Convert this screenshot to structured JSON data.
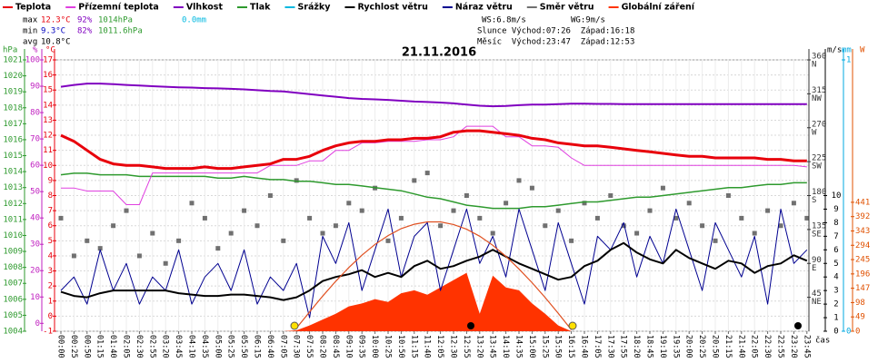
{
  "chart_data": {
    "type": "line",
    "title": "21.11.2016",
    "x_label": "čas",
    "categories": [
      "00:00",
      "00:25",
      "00:50",
      "01:15",
      "01:40",
      "02:05",
      "02:30",
      "02:55",
      "03:20",
      "03:45",
      "04:10",
      "04:35",
      "05:00",
      "05:25",
      "05:50",
      "06:15",
      "06:40",
      "07:05",
      "07:30",
      "07:55",
      "08:20",
      "08:45",
      "09:10",
      "09:35",
      "10:00",
      "10:25",
      "10:50",
      "11:15",
      "11:40",
      "12:05",
      "12:30",
      "12:55",
      "13:20",
      "13:45",
      "14:10",
      "14:35",
      "15:00",
      "15:25",
      "15:50",
      "16:15",
      "16:40",
      "17:05",
      "17:30",
      "17:55",
      "18:20",
      "18:45",
      "19:10",
      "19:35",
      "20:00",
      "20:25",
      "20:50",
      "21:15",
      "21:40",
      "22:05",
      "22:30",
      "22:55",
      "23:20",
      "23:45"
    ],
    "axes": {
      "hpa": {
        "label": "hPa",
        "color": "#2e9a2e",
        "ylim": [
          1004,
          1021
        ],
        "yticks": [
          1004,
          1005,
          1006,
          1007,
          1008,
          1009,
          1010,
          1011,
          1012,
          1013,
          1014,
          1015,
          1016,
          1017,
          1018,
          1019,
          1020,
          1021
        ]
      },
      "pct": {
        "label": "%",
        "color": "#c020c0",
        "ylim": [
          -3,
          100
        ],
        "yticks": [
          0,
          10,
          20,
          30,
          40,
          50,
          60,
          70,
          80,
          90,
          100
        ]
      },
      "temp": {
        "label": "°C",
        "color": "#e8000b",
        "ylim": [
          -1,
          17
        ],
        "yticks": [
          -1,
          0,
          1,
          2,
          3,
          4,
          5,
          6,
          7,
          8,
          9,
          10,
          11,
          12,
          13,
          14,
          15,
          16,
          17
        ]
      },
      "deg": {
        "color": "#333333",
        "ylim": [
          0,
          360
        ],
        "yticks": [
          45,
          90,
          135,
          180,
          225,
          270,
          315,
          360
        ],
        "direction_names": [
          "NE",
          "E",
          "SE",
          "S",
          "SW",
          "W",
          "NW",
          "N"
        ]
      },
      "ms": {
        "label": "m/s",
        "color": "#000000",
        "ylim": [
          0,
          20
        ],
        "yticks": [
          0,
          1,
          2,
          3,
          4,
          5,
          6,
          7,
          8,
          9,
          10
        ]
      },
      "mm": {
        "label": "mm",
        "color": "#00a8e0",
        "ylim": [
          0,
          1
        ],
        "yticks": [
          0,
          1
        ]
      },
      "w": {
        "label": "W",
        "color": "#e05000",
        "ylim": [
          0,
          928
        ],
        "yticks": [
          0,
          49,
          98,
          147,
          196,
          245,
          294,
          343,
          392,
          441
        ]
      }
    },
    "grid": true,
    "series": [
      {
        "name": "Teplota",
        "color": "#e8000b",
        "axis": "temp",
        "width": 3,
        "values": [
          12.0,
          11.6,
          11.0,
          10.4,
          10.1,
          10.0,
          10.0,
          9.9,
          9.8,
          9.8,
          9.8,
          9.9,
          9.8,
          9.8,
          9.9,
          10.0,
          10.1,
          10.4,
          10.4,
          10.6,
          11.0,
          11.3,
          11.5,
          11.6,
          11.6,
          11.7,
          11.7,
          11.8,
          11.8,
          11.9,
          12.2,
          12.3,
          12.3,
          12.2,
          12.1,
          12.0,
          11.8,
          11.7,
          11.5,
          11.4,
          11.3,
          11.3,
          11.2,
          11.1,
          11.0,
          10.9,
          10.8,
          10.7,
          10.6,
          10.6,
          10.5,
          10.5,
          10.5,
          10.5,
          10.4,
          10.4,
          10.3,
          10.3
        ]
      },
      {
        "name": "Přízemní teplota",
        "color": "#e040e0",
        "axis": "temp",
        "width": 1,
        "values": [
          8.5,
          8.5,
          8.3,
          8.3,
          8.3,
          7.4,
          7.4,
          9.5,
          9.5,
          9.5,
          9.5,
          9.5,
          9.5,
          9.5,
          9.5,
          9.5,
          10.0,
          10.0,
          10.0,
          10.3,
          10.3,
          11.0,
          11.0,
          11.5,
          11.5,
          11.6,
          11.6,
          11.6,
          11.7,
          11.7,
          11.9,
          12.6,
          12.6,
          12.6,
          11.9,
          11.9,
          11.3,
          11.3,
          11.2,
          10.5,
          10.0,
          10.0,
          10.0,
          10.0,
          10.0,
          10.0,
          10.0,
          10.0,
          10.0,
          10.0,
          10.0,
          10.0,
          10.0,
          10.0,
          10.0,
          10.0,
          10.0,
          9.9
        ]
      },
      {
        "name": "Vlhkost",
        "color": "#8000c0",
        "axis": "pct",
        "width": 2,
        "values": [
          89.8,
          90.5,
          91.0,
          91.0,
          90.8,
          90.5,
          90.3,
          90.0,
          89.8,
          89.6,
          89.5,
          89.3,
          89.2,
          89.0,
          88.8,
          88.5,
          88.2,
          88.0,
          87.5,
          87.0,
          86.5,
          86.0,
          85.5,
          85.2,
          85.0,
          84.8,
          84.5,
          84.2,
          84.0,
          83.8,
          83.5,
          83.0,
          82.6,
          82.4,
          82.5,
          82.8,
          83.0,
          83.0,
          83.2,
          83.4,
          83.4,
          83.3,
          83.3,
          83.2,
          83.2,
          83.2,
          83.2,
          83.2,
          83.2,
          83.2,
          83.2,
          83.2,
          83.2,
          83.2,
          83.2,
          83.2,
          83.2,
          83.2
        ]
      },
      {
        "name": "Tlak",
        "color": "#2e9a2e",
        "axis": "hpa",
        "width": 1.5,
        "values": [
          1013.8,
          1013.9,
          1013.9,
          1013.8,
          1013.8,
          1013.8,
          1013.7,
          1013.7,
          1013.7,
          1013.7,
          1013.7,
          1013.7,
          1013.6,
          1013.6,
          1013.7,
          1013.6,
          1013.5,
          1013.5,
          1013.4,
          1013.4,
          1013.3,
          1013.2,
          1013.2,
          1013.1,
          1013.0,
          1012.9,
          1012.8,
          1012.6,
          1012.4,
          1012.3,
          1012.1,
          1011.9,
          1011.8,
          1011.7,
          1011.7,
          1011.7,
          1011.8,
          1011.8,
          1011.9,
          1012.0,
          1012.1,
          1012.1,
          1012.2,
          1012.3,
          1012.4,
          1012.4,
          1012.5,
          1012.6,
          1012.7,
          1012.8,
          1012.9,
          1013.0,
          1013.0,
          1013.1,
          1013.2,
          1013.2,
          1013.3,
          1013.3
        ]
      },
      {
        "name": "Srážky",
        "color": "#00b8e0",
        "axis": "mm"
      },
      {
        "name": "Rychlost větru",
        "color": "#000000",
        "axis": "ms",
        "width": 2,
        "values": [
          2.9,
          2.6,
          2.5,
          2.8,
          3.0,
          3.0,
          3.0,
          3.0,
          3.0,
          2.8,
          2.7,
          2.6,
          2.6,
          2.7,
          2.7,
          2.6,
          2.5,
          2.3,
          2.5,
          3.0,
          3.7,
          4.0,
          4.2,
          4.5,
          4.0,
          4.3,
          4.0,
          4.8,
          5.2,
          4.6,
          4.8,
          5.2,
          5.5,
          6.0,
          5.5,
          5.0,
          4.6,
          4.2,
          3.8,
          4.0,
          4.8,
          5.2,
          6.0,
          6.5,
          5.8,
          5.3,
          5.0,
          6.0,
          5.4,
          5.0,
          4.6,
          5.2,
          5.0,
          4.3,
          4.8,
          5.0,
          5.6,
          5.2
        ]
      },
      {
        "name": "Náraz větru",
        "color": "#000090",
        "axis": "ms",
        "width": 1,
        "values": [
          3,
          4,
          2,
          6,
          3,
          5,
          2,
          4,
          3,
          6,
          2,
          4,
          5,
          3,
          6,
          2,
          4,
          3,
          5,
          1,
          7,
          5,
          8,
          3,
          6,
          9,
          4,
          7,
          8,
          3,
          6,
          9,
          5,
          7,
          4,
          9,
          6,
          3,
          8,
          5,
          2,
          7,
          6,
          8,
          4,
          7,
          5,
          9,
          6,
          3,
          8,
          6,
          4,
          7,
          2,
          9,
          5,
          6
        ]
      },
      {
        "name": "Směr větru",
        "color": "#707070",
        "axis": "deg",
        "kind": "scatter",
        "values": [
          150,
          100,
          120,
          110,
          140,
          160,
          100,
          130,
          90,
          120,
          170,
          150,
          110,
          130,
          160,
          140,
          180,
          120,
          200,
          150,
          130,
          140,
          170,
          160,
          190,
          120,
          150,
          200,
          210,
          140,
          160,
          180,
          150,
          130,
          170,
          200,
          190,
          140,
          160,
          120,
          170,
          150,
          180,
          140,
          130,
          160,
          190,
          150,
          170,
          140,
          120,
          180,
          150,
          130,
          160,
          140,
          170,
          150
        ]
      },
      {
        "name": "Globální záření",
        "color": "#ff3300",
        "axis": "w",
        "kind": "area",
        "values": [
          0,
          0,
          0,
          0,
          0,
          0,
          0,
          0,
          0,
          0,
          0,
          0,
          0,
          0,
          0,
          0,
          0,
          0,
          3,
          20,
          40,
          60,
          85,
          95,
          110,
          100,
          130,
          140,
          125,
          150,
          175,
          200,
          60,
          190,
          150,
          140,
          95,
          60,
          20,
          0,
          0,
          0,
          0,
          0,
          0,
          0,
          0,
          0,
          0,
          0,
          0,
          0,
          0,
          0,
          0,
          0,
          0,
          0
        ]
      }
    ],
    "radiation_max": {
      "color": "#e05020",
      "axis": "w",
      "values": [
        null,
        null,
        null,
        null,
        null,
        null,
        null,
        null,
        null,
        null,
        null,
        null,
        null,
        null,
        null,
        null,
        null,
        null,
        11,
        66,
        120,
        171,
        218,
        260,
        297,
        327,
        351,
        366,
        374,
        374,
        365,
        349,
        325,
        294,
        256,
        213,
        166,
        115,
        61,
        5,
        null,
        null,
        null,
        null,
        null,
        null,
        null,
        null,
        null,
        null,
        null,
        null,
        null,
        null,
        null,
        null,
        null,
        null
      ]
    },
    "stats": {
      "max": {
        "label": "max",
        "temp": "12.3°C",
        "hum": "92%",
        "press": "1014hPa",
        "rain": "0.0mm"
      },
      "min": {
        "label": "min",
        "temp": "9.3°C",
        "hum": "82%",
        "press": "1011.6hPa"
      },
      "avg": {
        "label": "avg",
        "temp": "10.8°C"
      }
    },
    "wind": {
      "ws": "WS:6.8m/s",
      "wg": "WG:9m/s"
    },
    "sun": "Slunce Východ:07:26  Západ:16:18",
    "moon": "Měsíc  Východ:23:47  Západ:12:53"
  }
}
